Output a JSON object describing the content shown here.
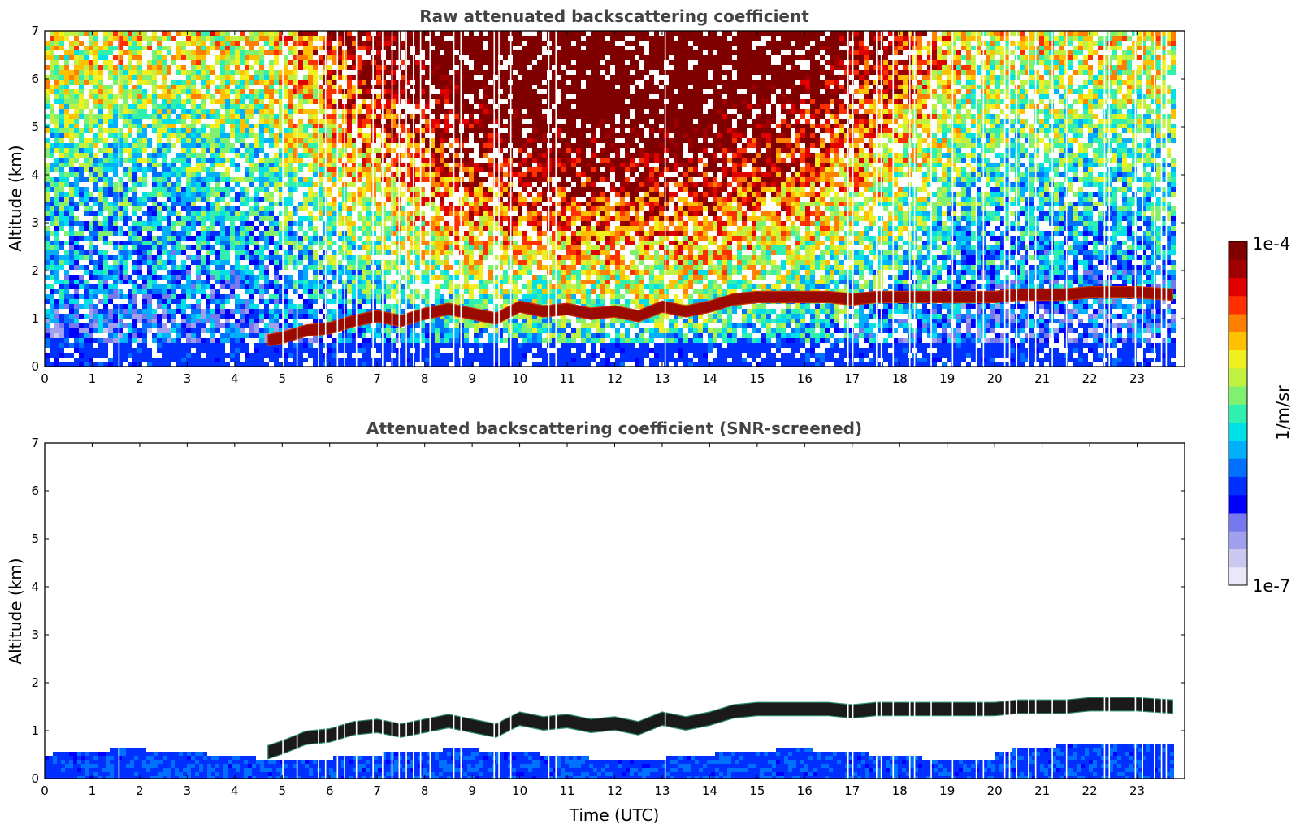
{
  "chart_data": [
    {
      "type": "heatmap",
      "title": "Raw attenuated backscattering coefficient",
      "xlabel": "",
      "ylabel": "Altitude (km)",
      "xlim": [
        0,
        24
      ],
      "ylim": [
        0,
        7
      ],
      "xticks": [
        "0",
        "1",
        "2",
        "3",
        "4",
        "5",
        "6",
        "7",
        "8",
        "9",
        "10",
        "11",
        "12",
        "13",
        "14",
        "15",
        "16",
        "17",
        "18",
        "19",
        "20",
        "21",
        "22",
        "23"
      ],
      "yticks": [
        "0",
        "1",
        "2",
        "3",
        "4",
        "5",
        "6",
        "7"
      ],
      "colorscale": "log",
      "noise": "high",
      "layer_top_km": {
        "x": [
          4.7,
          5.0,
          5.5,
          6.0,
          6.5,
          7.0,
          7.5,
          8.0,
          8.5,
          9.0,
          9.5,
          10.0,
          10.5,
          11.0,
          11.5,
          12.0,
          12.5,
          13.0,
          13.5,
          14.0,
          14.5,
          15.0,
          15.5,
          16.0,
          16.5,
          17.0,
          17.5,
          18.0,
          18.5,
          19.0,
          19.5,
          20.0,
          20.5,
          21.0,
          21.5,
          22.0,
          22.5,
          23.0,
          23.75
        ],
        "y": [
          0.55,
          0.6,
          0.75,
          0.8,
          0.95,
          1.05,
          0.95,
          1.1,
          1.2,
          1.1,
          1.0,
          1.25,
          1.15,
          1.2,
          1.1,
          1.15,
          1.05,
          1.25,
          1.15,
          1.25,
          1.4,
          1.45,
          1.45,
          1.45,
          1.45,
          1.4,
          1.45,
          1.45,
          1.45,
          1.45,
          1.45,
          1.45,
          1.5,
          1.5,
          1.5,
          1.55,
          1.55,
          1.55,
          1.5
        ]
      },
      "boundary_layer_top_km": 0.55
    },
    {
      "type": "heatmap",
      "title": "Attenuated backscattering coefficient (SNR-screened)",
      "xlabel": "Time (UTC)",
      "ylabel": "Altitude (km)",
      "xlim": [
        0,
        24
      ],
      "ylim": [
        0,
        7
      ],
      "xticks": [
        "0",
        "1",
        "2",
        "3",
        "4",
        "5",
        "6",
        "7",
        "8",
        "9",
        "10",
        "11",
        "12",
        "13",
        "14",
        "15",
        "16",
        "17",
        "18",
        "19",
        "20",
        "21",
        "22",
        "23"
      ],
      "yticks": [
        "0",
        "1",
        "2",
        "3",
        "4",
        "5",
        "6",
        "7"
      ],
      "colorscale": "log",
      "noise": "screened",
      "layer_top_km": {
        "x": [
          4.7,
          5.0,
          5.5,
          6.0,
          6.5,
          7.0,
          7.5,
          8.0,
          8.5,
          9.0,
          9.5,
          10.0,
          10.5,
          11.0,
          11.5,
          12.0,
          12.5,
          13.0,
          13.5,
          14.0,
          14.5,
          15.0,
          15.5,
          16.0,
          16.5,
          17.0,
          17.5,
          18.0,
          18.5,
          19.0,
          19.5,
          20.0,
          20.5,
          21.0,
          21.5,
          22.0,
          22.5,
          23.0,
          23.75
        ],
        "y": [
          0.55,
          0.65,
          0.85,
          0.9,
          1.05,
          1.1,
          1.0,
          1.1,
          1.2,
          1.1,
          1.0,
          1.25,
          1.15,
          1.2,
          1.1,
          1.15,
          1.05,
          1.25,
          1.15,
          1.25,
          1.4,
          1.45,
          1.45,
          1.45,
          1.45,
          1.4,
          1.45,
          1.45,
          1.45,
          1.45,
          1.45,
          1.45,
          1.5,
          1.5,
          1.5,
          1.55,
          1.55,
          1.55,
          1.5
        ]
      },
      "boundary_layer_top_km": 0.55
    }
  ],
  "colorbar": {
    "label": "1/m/sr",
    "max_label": "1e-4",
    "min_label": "1e-7",
    "colors": [
      "#e8e8f8",
      "#c8c8f0",
      "#a0a0ee",
      "#7878ee",
      "#0000ff",
      "#0030ff",
      "#0070ff",
      "#00b0ff",
      "#00e0e8",
      "#30f0b0",
      "#80f070",
      "#c0f040",
      "#f0f020",
      "#ffc000",
      "#ff8000",
      "#ff3000",
      "#e00000",
      "#a00000",
      "#800000"
    ]
  },
  "gap_times_utc": [
    1.55,
    5.0,
    5.3,
    5.75,
    5.9,
    6.15,
    6.3,
    6.55,
    6.9,
    7.1,
    7.3,
    7.45,
    7.6,
    7.75,
    7.9,
    8.1,
    8.6,
    8.75,
    9.45,
    9.55,
    9.8,
    10.6,
    10.75,
    13.05,
    16.9,
    17.0,
    17.5,
    17.6,
    17.85,
    18.2,
    18.3,
    18.65,
    19.1,
    19.6,
    19.75,
    20.2,
    20.3,
    20.45,
    20.7,
    20.85,
    21.2,
    21.5,
    22.3,
    22.4,
    22.95,
    23.1,
    23.35,
    23.5,
    23.6
  ]
}
